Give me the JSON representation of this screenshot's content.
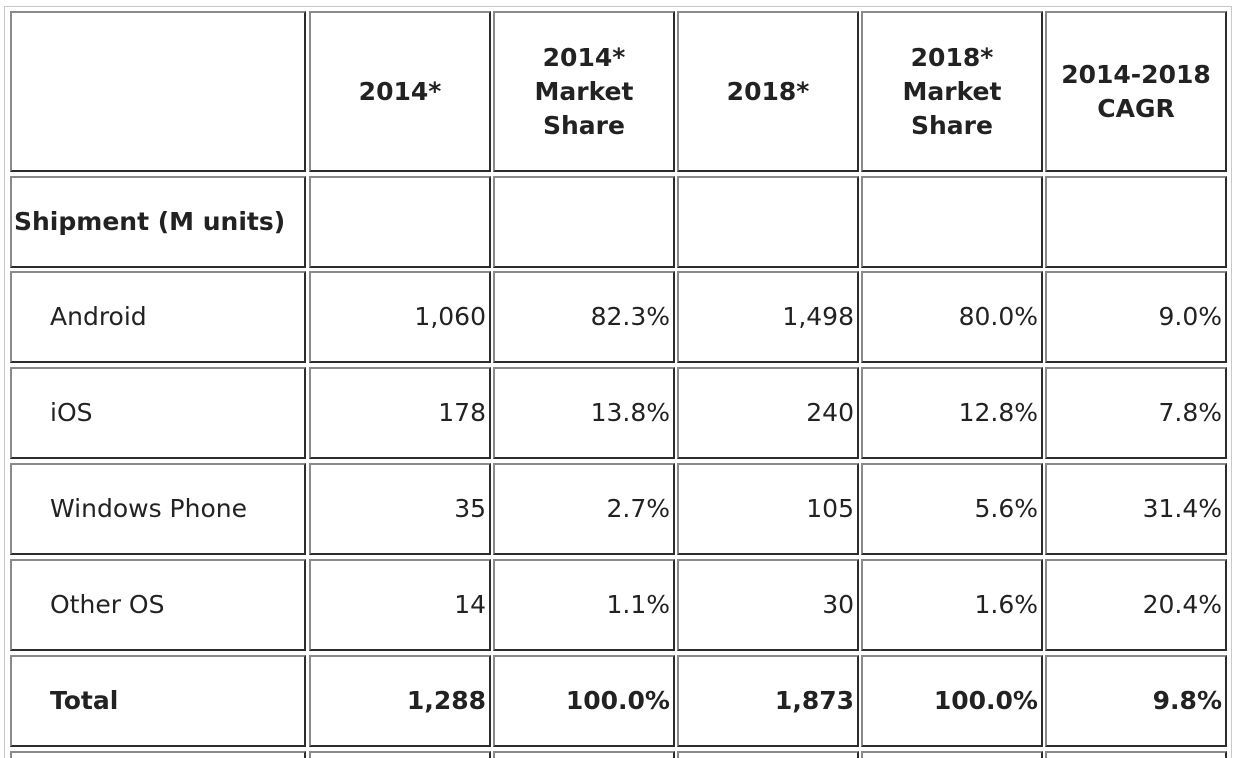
{
  "chart_data": {
    "type": "table",
    "title": "",
    "columns": [
      "",
      "2014*",
      "2014* Market Share",
      "2018*",
      "2018* Market Share",
      "2014-2018 CAGR"
    ],
    "header_lines": [
      [],
      [
        "2014*"
      ],
      [
        "2014*",
        "Market",
        "Share"
      ],
      [
        "2018*"
      ],
      [
        "2018*",
        "Market",
        "Share"
      ],
      [
        "2014-2018",
        "CAGR"
      ]
    ],
    "section_label": "Shipment (M units)",
    "rows": [
      {
        "label": "Android",
        "values": [
          "1,060",
          "82.3%",
          "1,498",
          "80.0%",
          "9.0%"
        ]
      },
      {
        "label": "iOS",
        "values": [
          "178",
          "13.8%",
          "240",
          "12.8%",
          "7.8%"
        ]
      },
      {
        "label": "Windows Phone",
        "values": [
          "35",
          "2.7%",
          "105",
          "5.6%",
          "31.4%"
        ]
      },
      {
        "label": "Other OS",
        "values": [
          "14",
          "1.1%",
          "30",
          "1.6%",
          "20.4%"
        ]
      },
      {
        "label": "Total",
        "values": [
          "1,288",
          "100.0%",
          "1,873",
          "100.0%",
          "9.8%"
        ],
        "bold": true
      }
    ]
  }
}
